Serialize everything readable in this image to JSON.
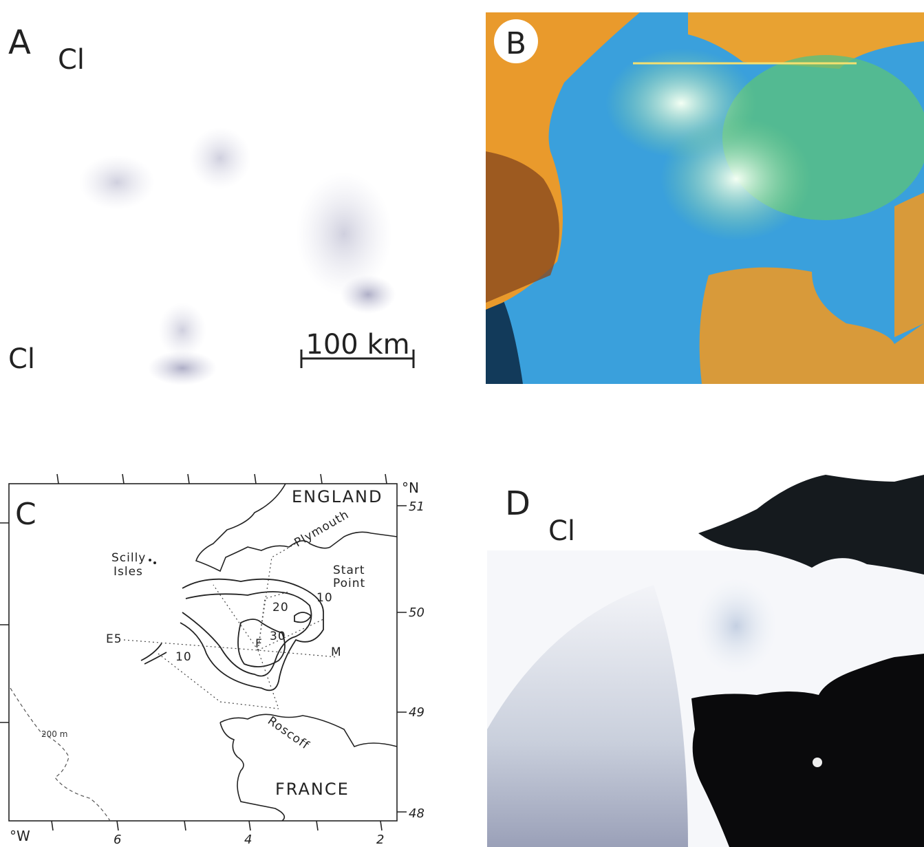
{
  "panels": [
    {
      "label": "A",
      "annotations": [
        "Cl",
        "Cl"
      ],
      "scale_bar": "100 km"
    },
    {
      "label": "B"
    },
    {
      "label": "C",
      "regions": [
        "ENGLAND",
        "FRANCE"
      ],
      "places": [
        "Scilly",
        "Isles",
        "Plymouth",
        "Start",
        "Point",
        "Roscoff"
      ],
      "stations": [
        "E5",
        "F",
        "M"
      ],
      "contours": [
        "10",
        "20",
        "30",
        "10"
      ],
      "isobath": "200 m",
      "lat_unit": "°N",
      "lat_labels": [
        "51",
        "50",
        "49",
        "48"
      ],
      "lon_unit": "°W",
      "lon_labels": [
        "6",
        "4",
        "2"
      ]
    },
    {
      "label": "D",
      "annotations": [
        "Cl"
      ]
    }
  ]
}
